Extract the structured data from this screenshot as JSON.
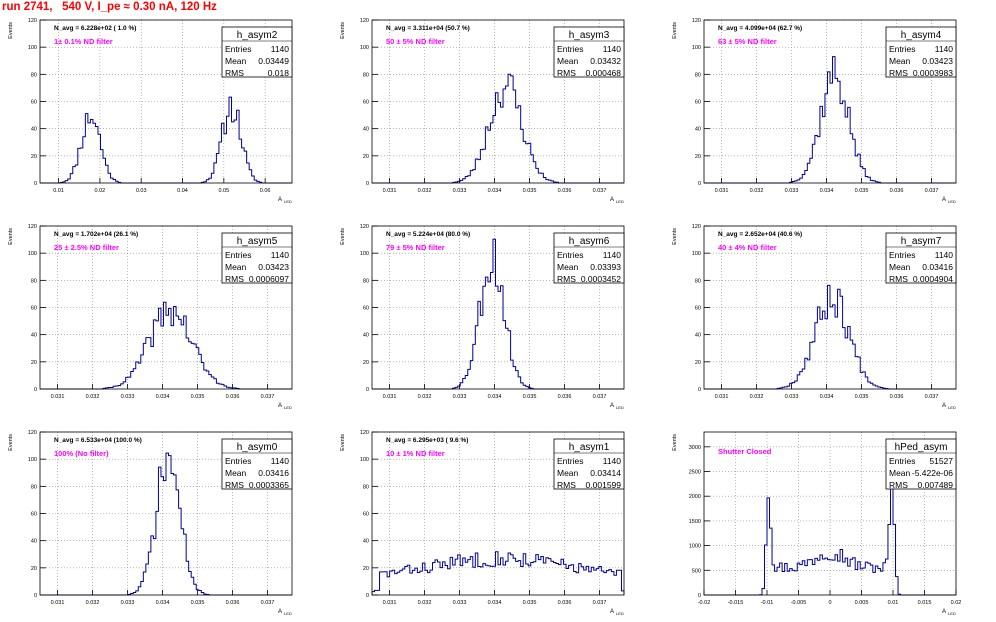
{
  "page": {
    "title": "run 2741,   540 V, I_pe ≈ 0.30 nA, 120 Hz"
  },
  "chart_data": [
    {
      "type": "bar",
      "name": "h_asym2",
      "entries": "1140",
      "mean": "0.03449",
      "rms": "0.018",
      "navg": "N_avg = 6.228e+02 ( 1.0 %)",
      "filter": "1± 0.1% ND filter",
      "ylabel": "Events",
      "xlabel": "A",
      "xlabel_sub": "LED",
      "xlim": [
        0.0055,
        0.0665
      ],
      "ylim": [
        0,
        120
      ],
      "xticks": [
        0.01,
        0.02,
        0.03,
        0.04,
        0.05,
        0.06
      ],
      "xtick_labels": [
        "0.01",
        "0.02",
        "0.03",
        "0.04",
        "0.05",
        "0.06"
      ],
      "yticks": [
        0,
        20,
        40,
        60,
        80,
        100,
        120
      ],
      "ytick_labels": [
        "0",
        "20",
        "40",
        "60",
        "80",
        "100",
        "120"
      ],
      "grid": true,
      "peaks": [
        {
          "center": 0.0178,
          "width": 0.0023,
          "height": 50
        },
        {
          "center": 0.0519,
          "width": 0.0023,
          "height": 57
        }
      ],
      "bins": 100,
      "seed": 11
    },
    {
      "type": "bar",
      "name": "h_asym3",
      "entries": "1140",
      "mean": "0.03432",
      "rms": "0.000468",
      "navg": "N_avg = 3.311e+04 (50.7 %)",
      "filter": "50 ± 5% ND filter",
      "ylabel": "Events",
      "xlabel": "A",
      "xlabel_sub": "LED",
      "xlim": [
        0.0305,
        0.0377
      ],
      "ylim": [
        0,
        120
      ],
      "xticks": [
        0.031,
        0.032,
        0.033,
        0.034,
        0.035,
        0.036,
        0.037
      ],
      "xtick_labels": [
        "0.031",
        "0.032",
        "0.033",
        "0.034",
        "0.035",
        "0.036",
        "0.037"
      ],
      "yticks": [
        0,
        20,
        40,
        60,
        80,
        100,
        120
      ],
      "ytick_labels": [
        "0",
        "20",
        "40",
        "60",
        "80",
        "100",
        "120"
      ],
      "grid": true,
      "peaks": [
        {
          "center": 0.03432,
          "width": 0.00047,
          "height": 72
        }
      ],
      "bins": 100,
      "seed": 23
    },
    {
      "type": "bar",
      "name": "h_asym4",
      "entries": "1140",
      "mean": "0.03423",
      "rms": "0.0003983",
      "navg": "N_avg = 4.099e+04 (62.7 %)",
      "filter": "63 ± 5% ND filter",
      "ylabel": "Events",
      "xlabel": "A",
      "xlabel_sub": "LED",
      "xlim": [
        0.0305,
        0.0377
      ],
      "ylim": [
        0,
        120
      ],
      "xticks": [
        0.031,
        0.032,
        0.033,
        0.034,
        0.035,
        0.036,
        0.037
      ],
      "xtick_labels": [
        "0.031",
        "0.032",
        "0.033",
        "0.034",
        "0.035",
        "0.036",
        "0.037"
      ],
      "yticks": [
        0,
        20,
        40,
        60,
        80,
        100,
        120
      ],
      "ytick_labels": [
        "0",
        "20",
        "40",
        "60",
        "80",
        "100",
        "120"
      ],
      "grid": true,
      "peaks": [
        {
          "center": 0.03423,
          "width": 0.0004,
          "height": 80
        }
      ],
      "bins": 100,
      "seed": 37
    },
    {
      "type": "bar",
      "name": "h_asym5",
      "entries": "1140",
      "mean": "0.03423",
      "rms": "0.0006097",
      "navg": "N_avg = 1.702e+04 (26.1 %)",
      "filter": "25 ± 2.5% ND filter",
      "ylabel": "Events",
      "xlabel": "A",
      "xlabel_sub": "LED",
      "xlim": [
        0.0305,
        0.0377
      ],
      "ylim": [
        0,
        120
      ],
      "xticks": [
        0.031,
        0.032,
        0.033,
        0.034,
        0.035,
        0.036,
        0.037
      ],
      "xtick_labels": [
        "0.031",
        "0.032",
        "0.033",
        "0.034",
        "0.035",
        "0.036",
        "0.037"
      ],
      "yticks": [
        0,
        20,
        40,
        60,
        80,
        100,
        120
      ],
      "ytick_labels": [
        "0",
        "20",
        "40",
        "60",
        "80",
        "100",
        "120"
      ],
      "grid": true,
      "peaks": [
        {
          "center": 0.03423,
          "width": 0.00061,
          "height": 58
        }
      ],
      "bins": 100,
      "seed": 41
    },
    {
      "type": "bar",
      "name": "h_asym6",
      "entries": "1140",
      "mean": "0.03393",
      "rms": "0.0003452",
      "navg": "N_avg = 5.224e+04 (80.0 %)",
      "filter": "79 ± 5% ND filter",
      "ylabel": "Events",
      "xlabel": "A",
      "xlabel_sub": "LED",
      "xlim": [
        0.0305,
        0.0377
      ],
      "ylim": [
        0,
        120
      ],
      "xticks": [
        0.031,
        0.032,
        0.033,
        0.034,
        0.035,
        0.036,
        0.037
      ],
      "xtick_labels": [
        "0.031",
        "0.032",
        "0.033",
        "0.034",
        "0.035",
        "0.036",
        "0.037"
      ],
      "yticks": [
        0,
        20,
        40,
        60,
        80,
        100,
        120
      ],
      "ytick_labels": [
        "0",
        "20",
        "40",
        "60",
        "80",
        "100",
        "120"
      ],
      "grid": true,
      "peaks": [
        {
          "center": 0.03393,
          "width": 0.00035,
          "height": 98
        }
      ],
      "bins": 100,
      "seed": 53
    },
    {
      "type": "bar",
      "name": "h_asym7",
      "entries": "1140",
      "mean": "0.03416",
      "rms": "0.0004904",
      "navg": "N_avg = 2.652e+04 (40.6 %)",
      "filter": "40 ± 4% ND filter",
      "ylabel": "Events",
      "xlabel": "A",
      "xlabel_sub": "LED",
      "xlim": [
        0.0305,
        0.0377
      ],
      "ylim": [
        0,
        120
      ],
      "xticks": [
        0.031,
        0.032,
        0.033,
        0.034,
        0.035,
        0.036,
        0.037
      ],
      "xtick_labels": [
        "0.031",
        "0.032",
        "0.033",
        "0.034",
        "0.035",
        "0.036",
        "0.037"
      ],
      "yticks": [
        0,
        20,
        40,
        60,
        80,
        100,
        120
      ],
      "ytick_labels": [
        "0",
        "20",
        "40",
        "60",
        "80",
        "100",
        "120"
      ],
      "grid": true,
      "peaks": [
        {
          "center": 0.03416,
          "width": 0.00049,
          "height": 68
        }
      ],
      "bins": 100,
      "seed": 67
    },
    {
      "type": "bar",
      "name": "h_asym0",
      "entries": "1140",
      "mean": "0.03416",
      "rms": "0.0003365",
      "navg": "N_avg = 6.533e+04 (100.0 %)",
      "filter": "100% (No filter)",
      "ylabel": "Events",
      "xlabel": "A",
      "xlabel_sub": "LED",
      "xlim": [
        0.0305,
        0.0377
      ],
      "ylim": [
        0,
        120
      ],
      "xticks": [
        0.031,
        0.032,
        0.033,
        0.034,
        0.035,
        0.036,
        0.037
      ],
      "xtick_labels": [
        "0.031",
        "0.032",
        "0.033",
        "0.034",
        "0.035",
        "0.036",
        "0.037"
      ],
      "yticks": [
        0,
        20,
        40,
        60,
        80,
        100,
        120
      ],
      "ytick_labels": [
        "0",
        "20",
        "40",
        "60",
        "80",
        "100",
        "120"
      ],
      "grid": true,
      "peaks": [
        {
          "center": 0.03416,
          "width": 0.00034,
          "height": 100
        }
      ],
      "bins": 100,
      "seed": 71
    },
    {
      "type": "bar",
      "name": "h_asym1",
      "entries": "1140",
      "mean": "0.03414",
      "rms": "0.001599",
      "navg": "N_avg = 6.295e+03 ( 9.6 %)",
      "filter": "10 ± 1% ND filter",
      "ylabel": "Events",
      "xlabel": "A",
      "xlabel_sub": "LED",
      "xlim": [
        0.0305,
        0.0377
      ],
      "ylim": [
        0,
        120
      ],
      "xticks": [
        0.031,
        0.032,
        0.033,
        0.034,
        0.035,
        0.036,
        0.037
      ],
      "xtick_labels": [
        "0.031",
        "0.032",
        "0.033",
        "0.034",
        "0.035",
        "0.036",
        "0.037"
      ],
      "yticks": [
        0,
        20,
        40,
        60,
        80,
        100,
        120
      ],
      "ytick_labels": [
        "0",
        "20",
        "40",
        "60",
        "80",
        "100",
        "120"
      ],
      "grid": true,
      "peaks": [
        {
          "center": 0.0342,
          "width": 0.002,
          "height": 15
        }
      ],
      "flat": {
        "from": 0.0307,
        "to": 0.0376,
        "level": 12
      },
      "bins": 100,
      "seed": 83
    },
    {
      "type": "bar",
      "name": "hPed_asym",
      "entries": "51527",
      "mean": "-5.422e-06",
      "rms": "0.007489",
      "navg": "",
      "filter": "Shutter Closed",
      "ylabel": "Events",
      "xlabel": "A",
      "xlabel_sub": "LED",
      "xlim": [
        -0.02,
        0.02
      ],
      "ylim": [
        0,
        3300
      ],
      "xticks": [
        -0.02,
        -0.015,
        -0.01,
        -0.005,
        0,
        0.005,
        0.01,
        0.015,
        0.02
      ],
      "xtick_labels": [
        "-0.02",
        "-0.015",
        "-0.01",
        "-0.005",
        "0",
        "0.005",
        "0.01",
        "0.015",
        "0.02"
      ],
      "yticks": [
        0,
        500,
        1000,
        1500,
        2000,
        2500,
        3000
      ],
      "ytick_labels": [
        "0",
        "500",
        "1000",
        "1500",
        "2000",
        "2500",
        "3000"
      ],
      "grid": true,
      "peaks": [
        {
          "center": -0.0098,
          "width": 0.00035,
          "height": 2200
        },
        {
          "center": 0.0099,
          "width": 0.00035,
          "height": 2300
        },
        {
          "center": 0.0,
          "width": 0.0022,
          "height": 350
        }
      ],
      "flat": {
        "from": -0.0095,
        "to": 0.0095,
        "level": 560
      },
      "bins": 100,
      "seed": 97
    }
  ]
}
